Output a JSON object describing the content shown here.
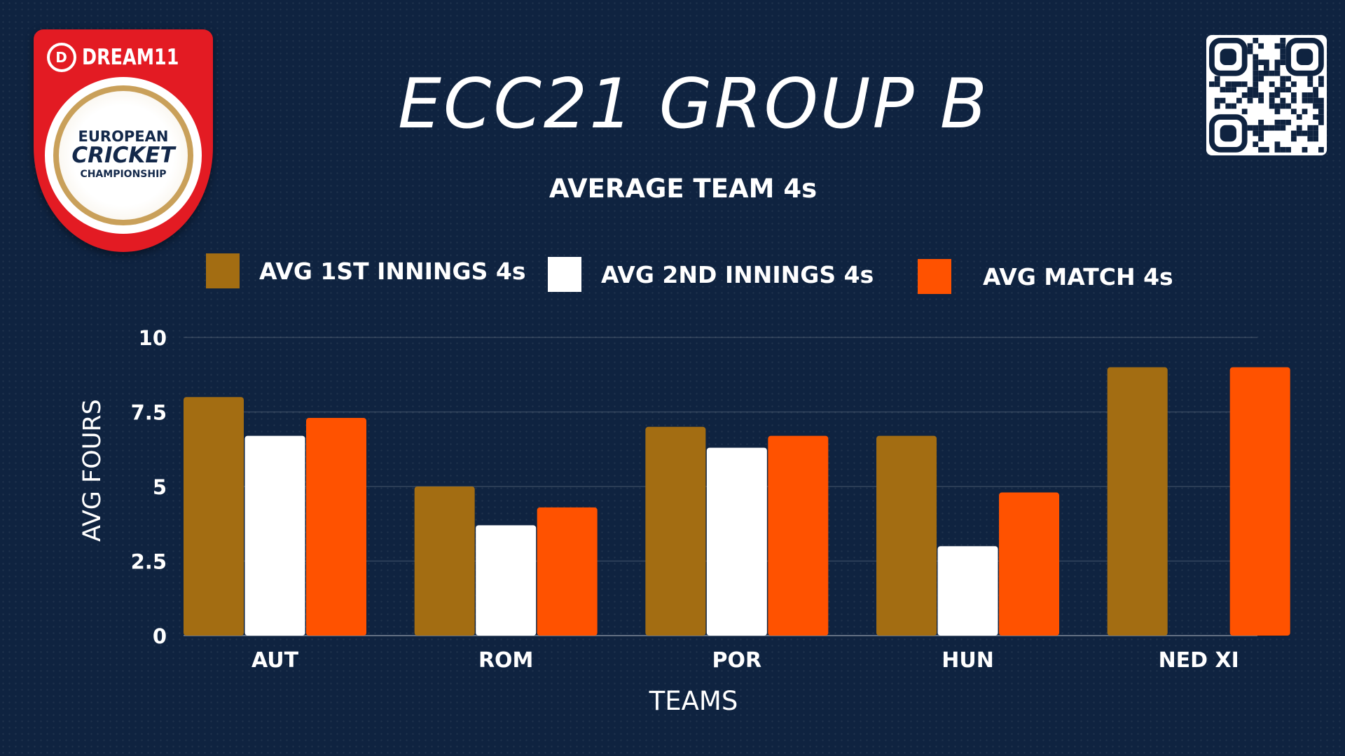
{
  "header": {
    "title": "ECC21 GROUP B",
    "subtitle": "AVERAGE TEAM 4s"
  },
  "logo": {
    "brand": "DREAM11",
    "line1": "EUROPEAN",
    "line2": "CRICKET",
    "line3": "CHAMPIONSHIP"
  },
  "colors": {
    "background": "#0f2340",
    "series_1st": "#a36d12",
    "series_2nd": "#ffffff",
    "series_match": "#ff5200",
    "brand_red": "#e31b23"
  },
  "legend": [
    {
      "label": "AVG 1ST INNINGS 4s"
    },
    {
      "label": "AVG 2ND INNINGS 4s"
    },
    {
      "label": "AVG MATCH 4s"
    }
  ],
  "chart_data": {
    "type": "bar",
    "title": "AVERAGE TEAM 4s",
    "xlabel": "TEAMS",
    "ylabel": "AVG FOURS",
    "categories": [
      "AUT",
      "ROM",
      "POR",
      "HUN",
      "NED XI"
    ],
    "series": [
      {
        "name": "AVG 1ST INNINGS 4s",
        "color": "#a36d12",
        "values": [
          8,
          5,
          7,
          6.7,
          9
        ]
      },
      {
        "name": "AVG 2ND INNINGS 4s",
        "color": "#ffffff",
        "values": [
          6.7,
          3.7,
          6.3,
          3,
          0
        ]
      },
      {
        "name": "AVG MATCH 4s",
        "color": "#ff5200",
        "values": [
          7.3,
          4.3,
          6.7,
          4.8,
          9
        ]
      }
    ],
    "yticks": [
      "0",
      "2.5",
      "5",
      "7.5",
      "10"
    ],
    "ylim": [
      0,
      10
    ],
    "grid": true,
    "legend_position": "top"
  }
}
